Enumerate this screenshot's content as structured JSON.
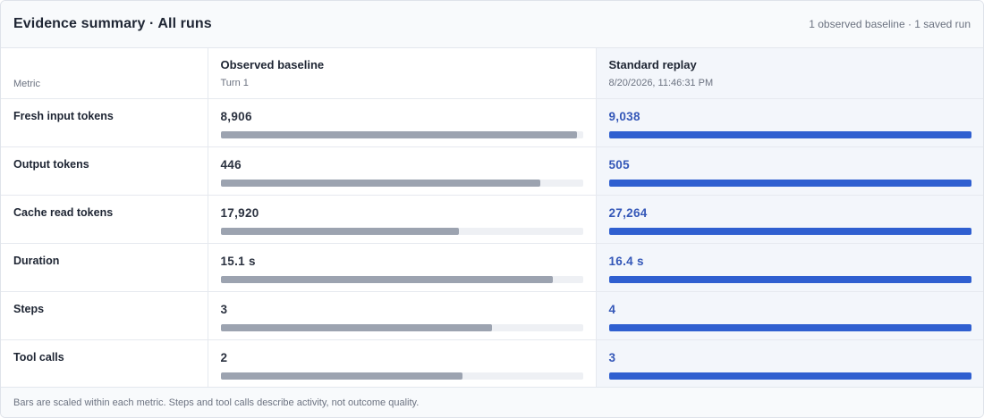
{
  "header": {
    "title": "Evidence summary · All runs",
    "meta": "1 observed baseline · 1 saved run"
  },
  "table": {
    "metric_header": "Metric",
    "columns": [
      {
        "name": "Observed baseline",
        "subtitle": "Turn 1"
      },
      {
        "name": "Standard replay",
        "subtitle": "8/20/2026, 11:46:31 PM"
      }
    ],
    "rows": [
      {
        "metric": "Fresh input tokens",
        "baseline": "8,906",
        "baseline_fill": 0.985,
        "replay": "9,038",
        "replay_fill": 1.0
      },
      {
        "metric": "Output tokens",
        "baseline": "446",
        "baseline_fill": 0.883,
        "replay": "505",
        "replay_fill": 1.0
      },
      {
        "metric": "Cache read tokens",
        "baseline": "17,920",
        "baseline_fill": 0.657,
        "replay": "27,264",
        "replay_fill": 1.0
      },
      {
        "metric": "Duration",
        "baseline": "15.1 s",
        "baseline_fill": 0.918,
        "replay": "16.4 s",
        "replay_fill": 1.0
      },
      {
        "metric": "Steps",
        "baseline": "3",
        "baseline_fill": 0.75,
        "replay": "4",
        "replay_fill": 1.0
      },
      {
        "metric": "Tool calls",
        "baseline": "2",
        "baseline_fill": 0.667,
        "replay": "3",
        "replay_fill": 1.0
      }
    ]
  },
  "footer": {
    "note": "Bars are scaled within each metric. Steps and tool calls describe activity, not outcome quality."
  },
  "colors": {
    "baseline_bar": "#9ca3b0",
    "replay_bar": "#2f5fd0",
    "replay_value": "#3457b8"
  }
}
